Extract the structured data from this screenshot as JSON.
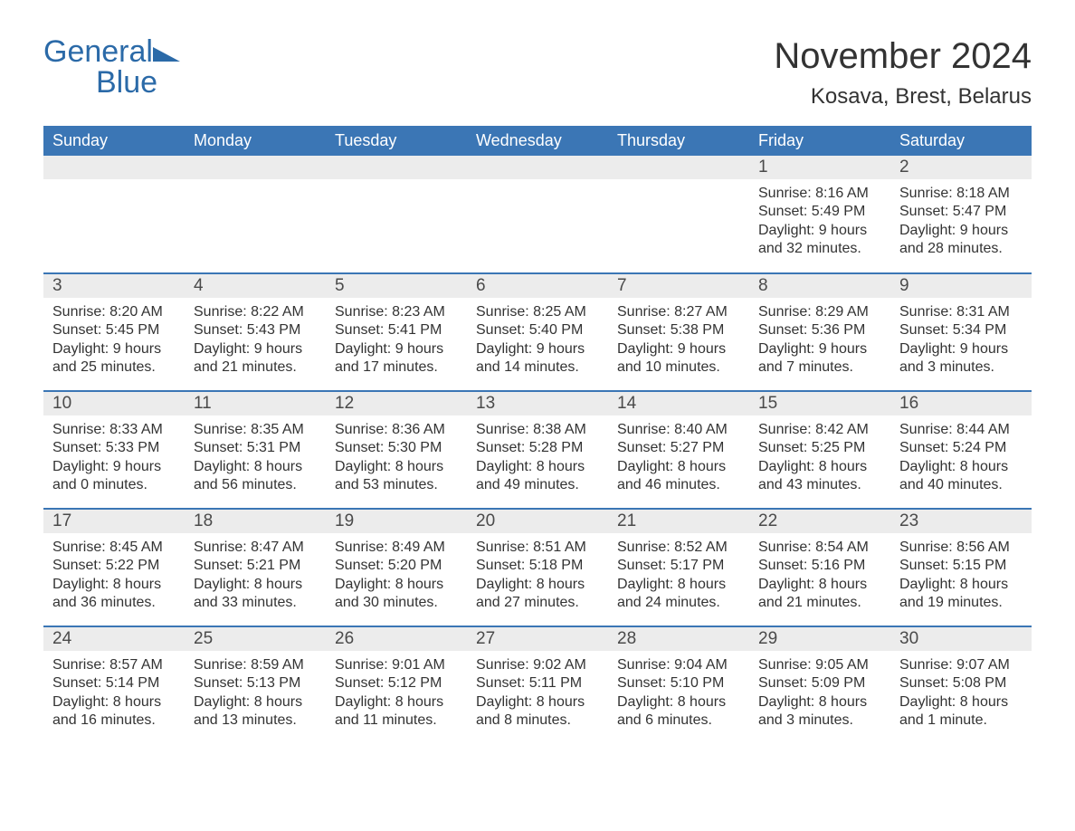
{
  "brand": {
    "part1": "General",
    "part2": "Blue"
  },
  "title": "November 2024",
  "location": "Kosava, Brest, Belarus",
  "colors": {
    "header_bg": "#3b76b5",
    "header_text": "#ffffff",
    "daynum_bg": "#ececec",
    "separator": "#3b76b5",
    "brand": "#2b6aa8",
    "body_text": "#333333",
    "page_bg": "#ffffff"
  },
  "layout": {
    "columns": 7,
    "rows": 5,
    "first_weekday": "Sunday"
  },
  "weekdays": [
    "Sunday",
    "Monday",
    "Tuesday",
    "Wednesday",
    "Thursday",
    "Friday",
    "Saturday"
  ],
  "weeks": [
    [
      null,
      null,
      null,
      null,
      null,
      {
        "day": "1",
        "sunrise": "Sunrise: 8:16 AM",
        "sunset": "Sunset: 5:49 PM",
        "daylight1": "Daylight: 9 hours",
        "daylight2": "and 32 minutes."
      },
      {
        "day": "2",
        "sunrise": "Sunrise: 8:18 AM",
        "sunset": "Sunset: 5:47 PM",
        "daylight1": "Daylight: 9 hours",
        "daylight2": "and 28 minutes."
      }
    ],
    [
      {
        "day": "3",
        "sunrise": "Sunrise: 8:20 AM",
        "sunset": "Sunset: 5:45 PM",
        "daylight1": "Daylight: 9 hours",
        "daylight2": "and 25 minutes."
      },
      {
        "day": "4",
        "sunrise": "Sunrise: 8:22 AM",
        "sunset": "Sunset: 5:43 PM",
        "daylight1": "Daylight: 9 hours",
        "daylight2": "and 21 minutes."
      },
      {
        "day": "5",
        "sunrise": "Sunrise: 8:23 AM",
        "sunset": "Sunset: 5:41 PM",
        "daylight1": "Daylight: 9 hours",
        "daylight2": "and 17 minutes."
      },
      {
        "day": "6",
        "sunrise": "Sunrise: 8:25 AM",
        "sunset": "Sunset: 5:40 PM",
        "daylight1": "Daylight: 9 hours",
        "daylight2": "and 14 minutes."
      },
      {
        "day": "7",
        "sunrise": "Sunrise: 8:27 AM",
        "sunset": "Sunset: 5:38 PM",
        "daylight1": "Daylight: 9 hours",
        "daylight2": "and 10 minutes."
      },
      {
        "day": "8",
        "sunrise": "Sunrise: 8:29 AM",
        "sunset": "Sunset: 5:36 PM",
        "daylight1": "Daylight: 9 hours",
        "daylight2": "and 7 minutes."
      },
      {
        "day": "9",
        "sunrise": "Sunrise: 8:31 AM",
        "sunset": "Sunset: 5:34 PM",
        "daylight1": "Daylight: 9 hours",
        "daylight2": "and 3 minutes."
      }
    ],
    [
      {
        "day": "10",
        "sunrise": "Sunrise: 8:33 AM",
        "sunset": "Sunset: 5:33 PM",
        "daylight1": "Daylight: 9 hours",
        "daylight2": "and 0 minutes."
      },
      {
        "day": "11",
        "sunrise": "Sunrise: 8:35 AM",
        "sunset": "Sunset: 5:31 PM",
        "daylight1": "Daylight: 8 hours",
        "daylight2": "and 56 minutes."
      },
      {
        "day": "12",
        "sunrise": "Sunrise: 8:36 AM",
        "sunset": "Sunset: 5:30 PM",
        "daylight1": "Daylight: 8 hours",
        "daylight2": "and 53 minutes."
      },
      {
        "day": "13",
        "sunrise": "Sunrise: 8:38 AM",
        "sunset": "Sunset: 5:28 PM",
        "daylight1": "Daylight: 8 hours",
        "daylight2": "and 49 minutes."
      },
      {
        "day": "14",
        "sunrise": "Sunrise: 8:40 AM",
        "sunset": "Sunset: 5:27 PM",
        "daylight1": "Daylight: 8 hours",
        "daylight2": "and 46 minutes."
      },
      {
        "day": "15",
        "sunrise": "Sunrise: 8:42 AM",
        "sunset": "Sunset: 5:25 PM",
        "daylight1": "Daylight: 8 hours",
        "daylight2": "and 43 minutes."
      },
      {
        "day": "16",
        "sunrise": "Sunrise: 8:44 AM",
        "sunset": "Sunset: 5:24 PM",
        "daylight1": "Daylight: 8 hours",
        "daylight2": "and 40 minutes."
      }
    ],
    [
      {
        "day": "17",
        "sunrise": "Sunrise: 8:45 AM",
        "sunset": "Sunset: 5:22 PM",
        "daylight1": "Daylight: 8 hours",
        "daylight2": "and 36 minutes."
      },
      {
        "day": "18",
        "sunrise": "Sunrise: 8:47 AM",
        "sunset": "Sunset: 5:21 PM",
        "daylight1": "Daylight: 8 hours",
        "daylight2": "and 33 minutes."
      },
      {
        "day": "19",
        "sunrise": "Sunrise: 8:49 AM",
        "sunset": "Sunset: 5:20 PM",
        "daylight1": "Daylight: 8 hours",
        "daylight2": "and 30 minutes."
      },
      {
        "day": "20",
        "sunrise": "Sunrise: 8:51 AM",
        "sunset": "Sunset: 5:18 PM",
        "daylight1": "Daylight: 8 hours",
        "daylight2": "and 27 minutes."
      },
      {
        "day": "21",
        "sunrise": "Sunrise: 8:52 AM",
        "sunset": "Sunset: 5:17 PM",
        "daylight1": "Daylight: 8 hours",
        "daylight2": "and 24 minutes."
      },
      {
        "day": "22",
        "sunrise": "Sunrise: 8:54 AM",
        "sunset": "Sunset: 5:16 PM",
        "daylight1": "Daylight: 8 hours",
        "daylight2": "and 21 minutes."
      },
      {
        "day": "23",
        "sunrise": "Sunrise: 8:56 AM",
        "sunset": "Sunset: 5:15 PM",
        "daylight1": "Daylight: 8 hours",
        "daylight2": "and 19 minutes."
      }
    ],
    [
      {
        "day": "24",
        "sunrise": "Sunrise: 8:57 AM",
        "sunset": "Sunset: 5:14 PM",
        "daylight1": "Daylight: 8 hours",
        "daylight2": "and 16 minutes."
      },
      {
        "day": "25",
        "sunrise": "Sunrise: 8:59 AM",
        "sunset": "Sunset: 5:13 PM",
        "daylight1": "Daylight: 8 hours",
        "daylight2": "and 13 minutes."
      },
      {
        "day": "26",
        "sunrise": "Sunrise: 9:01 AM",
        "sunset": "Sunset: 5:12 PM",
        "daylight1": "Daylight: 8 hours",
        "daylight2": "and 11 minutes."
      },
      {
        "day": "27",
        "sunrise": "Sunrise: 9:02 AM",
        "sunset": "Sunset: 5:11 PM",
        "daylight1": "Daylight: 8 hours",
        "daylight2": "and 8 minutes."
      },
      {
        "day": "28",
        "sunrise": "Sunrise: 9:04 AM",
        "sunset": "Sunset: 5:10 PM",
        "daylight1": "Daylight: 8 hours",
        "daylight2": "and 6 minutes."
      },
      {
        "day": "29",
        "sunrise": "Sunrise: 9:05 AM",
        "sunset": "Sunset: 5:09 PM",
        "daylight1": "Daylight: 8 hours",
        "daylight2": "and 3 minutes."
      },
      {
        "day": "30",
        "sunrise": "Sunrise: 9:07 AM",
        "sunset": "Sunset: 5:08 PM",
        "daylight1": "Daylight: 8 hours",
        "daylight2": "and 1 minute."
      }
    ]
  ]
}
